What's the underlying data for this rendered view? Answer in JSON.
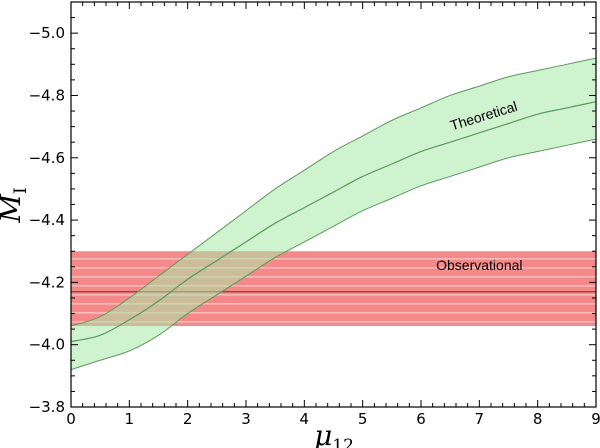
{
  "chart_data": {
    "type": "line",
    "xlabel": "μ",
    "xlabel_sub": "12",
    "ylabel": "M",
    "ylabel_sub": "I",
    "xlim": [
      0,
      9
    ],
    "ylim": [
      -3.8,
      -5.1
    ],
    "xticks": [
      0,
      1,
      2,
      3,
      4,
      5,
      6,
      7,
      8,
      9
    ],
    "xtick_labels": [
      "0",
      "1",
      "2",
      "3",
      "4",
      "5",
      "6",
      "7",
      "8",
      "9"
    ],
    "yticks": [
      -3.8,
      -4.0,
      -4.2,
      -4.4,
      -4.6,
      -4.8,
      -5.0
    ],
    "ytick_labels": [
      "−3.8",
      "−4.0",
      "−4.2",
      "−4.4",
      "−4.6",
      "−4.8",
      "−5.0"
    ],
    "grid": false,
    "series": [
      {
        "name": "Theoretical",
        "color": "#5a9a5a",
        "fill_color": "#a8e8a8",
        "x": [
          0,
          0.5,
          1,
          1.5,
          2,
          2.5,
          3,
          3.5,
          4,
          4.5,
          5,
          5.5,
          6,
          6.5,
          7,
          7.5,
          8,
          8.5,
          9
        ],
        "y": [
          -4.01,
          -4.03,
          -4.08,
          -4.14,
          -4.21,
          -4.27,
          -4.33,
          -4.39,
          -4.44,
          -4.49,
          -4.54,
          -4.58,
          -4.62,
          -4.65,
          -4.68,
          -4.71,
          -4.74,
          -4.76,
          -4.78
        ],
        "y_lower": [
          -3.92,
          -3.95,
          -3.98,
          -4.03,
          -4.1,
          -4.16,
          -4.22,
          -4.28,
          -4.33,
          -4.38,
          -4.43,
          -4.47,
          -4.51,
          -4.54,
          -4.57,
          -4.6,
          -4.62,
          -4.64,
          -4.66
        ],
        "y_upper": [
          -4.06,
          -4.09,
          -4.15,
          -4.22,
          -4.29,
          -4.36,
          -4.43,
          -4.5,
          -4.56,
          -4.62,
          -4.67,
          -4.72,
          -4.76,
          -4.8,
          -4.83,
          -4.86,
          -4.88,
          -4.9,
          -4.92
        ]
      },
      {
        "name": "Observational",
        "color": "#8a2020",
        "fill_color": "#f08080",
        "y": -4.17,
        "y_lower": -4.06,
        "y_upper": -4.3
      }
    ],
    "annotations": [
      {
        "text": "Theoretical",
        "x": 7.1,
        "y": -4.72,
        "rotate": -17
      },
      {
        "text": "Observational",
        "x": 7.0,
        "y": -4.24,
        "rotate": 0
      }
    ]
  }
}
